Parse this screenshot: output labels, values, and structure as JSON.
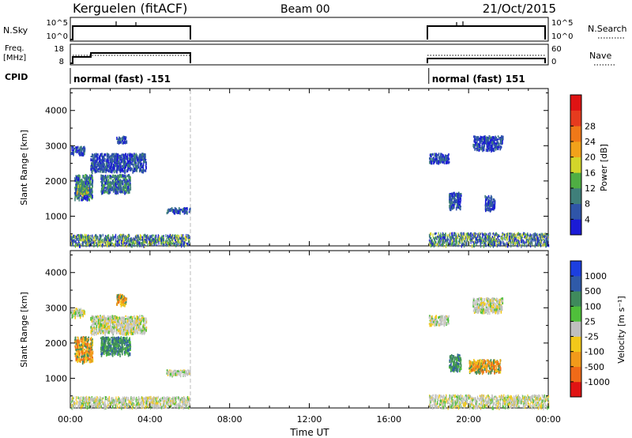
{
  "header": {
    "station": "Kerguelen (fitACF)",
    "beam": "Beam 00",
    "date": "21/Oct/2015"
  },
  "status_panels": {
    "nsky": {
      "label": "N.Sky",
      "ticks": [
        "10^5",
        "10^0"
      ]
    },
    "nsearch": {
      "label": "N.Search",
      "ticks": [
        "10^5",
        "10^0"
      ]
    },
    "freq": {
      "label_line1": "Freq.",
      "label_line2": "[MHz]",
      "ticks": [
        "18",
        "8"
      ]
    },
    "nave": {
      "label": "Nave",
      "ticks": [
        "60",
        "0"
      ]
    },
    "cpid": {
      "label": "CPID",
      "modes": [
        {
          "name": "normal (fast) -151",
          "start_hour": 0.0,
          "end_hour": 6.0
        },
        {
          "name": "normal (fast) 151",
          "start_hour": 18.0,
          "end_hour": 24.0
        }
      ]
    }
  },
  "chart_data": [
    {
      "type": "heatmap",
      "panel": "power",
      "ylabel": "Slant Range [km]",
      "xlabel": "",
      "ylim": [
        180,
        4600
      ],
      "y_ticks": [
        1000,
        2000,
        3000,
        4000
      ],
      "xlim": [
        0,
        24
      ],
      "colorbar": {
        "label": "Power [dB]",
        "ticks": [
          "4",
          "8",
          "12",
          "16",
          "20",
          "24",
          "28"
        ],
        "range": [
          0,
          30
        ],
        "colors": [
          "#1b1bd6",
          "#2f55a8",
          "#3f7f7a",
          "#4fae43",
          "#d3d62a",
          "#f2a21a",
          "#f07818",
          "#e63b1e",
          "#e01313"
        ]
      },
      "blobs": [
        {
          "t0": 0.0,
          "t1": 0.7,
          "r0": 2780,
          "r1": 3000,
          "level": "low"
        },
        {
          "t0": 0.2,
          "t1": 1.1,
          "r0": 1500,
          "r1": 2200,
          "level": "mid"
        },
        {
          "t0": 0.3,
          "t1": 0.9,
          "r0": 1650,
          "r1": 1900,
          "level": "high"
        },
        {
          "t0": 1.0,
          "t1": 3.8,
          "r0": 2300,
          "r1": 2800,
          "level": "low"
        },
        {
          "t0": 1.5,
          "t1": 3.0,
          "r0": 1700,
          "r1": 2200,
          "level": "mid"
        },
        {
          "t0": 2.3,
          "t1": 2.8,
          "r0": 3100,
          "r1": 3300,
          "level": "low"
        },
        {
          "t0": 4.8,
          "t1": 6.0,
          "r0": 1120,
          "r1": 1260,
          "level": "low"
        },
        {
          "t0": 0.0,
          "t1": 6.0,
          "r0": 200,
          "r1": 500,
          "level": "floor"
        },
        {
          "t0": 18.0,
          "t1": 19.0,
          "r0": 2550,
          "r1": 2800,
          "level": "low"
        },
        {
          "t0": 20.2,
          "t1": 21.7,
          "r0": 2900,
          "r1": 3300,
          "level": "low"
        },
        {
          "t0": 19.0,
          "t1": 19.6,
          "r0": 1250,
          "r1": 1700,
          "level": "low"
        },
        {
          "t0": 20.8,
          "t1": 21.3,
          "r0": 1200,
          "r1": 1600,
          "level": "low"
        },
        {
          "t0": 18.0,
          "t1": 24.0,
          "r0": 200,
          "r1": 550,
          "level": "floor"
        }
      ]
    },
    {
      "type": "heatmap",
      "panel": "velocity",
      "ylabel": "Slant Range [km]",
      "xlabel": "Time UT",
      "ylim": [
        180,
        4600
      ],
      "y_ticks": [
        1000,
        2000,
        3000,
        4000
      ],
      "xlim": [
        0,
        24
      ],
      "x_ticks": [
        "00:00",
        "04:00",
        "08:00",
        "12:00",
        "16:00",
        "20:00",
        "00:00"
      ],
      "colorbar": {
        "label": "Velocity [m s⁻¹]",
        "ticks": [
          "1000",
          "500",
          "100",
          "25",
          "-25",
          "-100",
          "-500",
          "-1000"
        ],
        "colors": [
          "#1c3fe0",
          "#2f5aa8",
          "#3f8a5c",
          "#4fbf3a",
          "#bfbfbf",
          "#f2c81a",
          "#f29a1a",
          "#f06a18",
          "#e01313"
        ]
      },
      "blobs": [
        {
          "t0": 0.0,
          "t1": 0.7,
          "r0": 2780,
          "r1": 3000,
          "level": "ground"
        },
        {
          "t0": 0.2,
          "t1": 1.1,
          "r0": 1500,
          "r1": 2200,
          "level": "neg"
        },
        {
          "t0": 1.0,
          "t1": 3.8,
          "r0": 2300,
          "r1": 2800,
          "level": "ground"
        },
        {
          "t0": 1.5,
          "t1": 3.0,
          "r0": 1700,
          "r1": 2200,
          "level": "pos"
        },
        {
          "t0": 2.3,
          "t1": 2.8,
          "r0": 3100,
          "r1": 3400,
          "level": "neg"
        },
        {
          "t0": 4.8,
          "t1": 6.0,
          "r0": 1120,
          "r1": 1260,
          "level": "ground"
        },
        {
          "t0": 0.0,
          "t1": 6.0,
          "r0": 200,
          "r1": 500,
          "level": "ground"
        },
        {
          "t0": 18.0,
          "t1": 19.0,
          "r0": 2550,
          "r1": 2800,
          "level": "ground"
        },
        {
          "t0": 20.2,
          "t1": 21.7,
          "r0": 2900,
          "r1": 3300,
          "level": "ground"
        },
        {
          "t0": 19.0,
          "t1": 19.6,
          "r0": 1250,
          "r1": 1700,
          "level": "pos"
        },
        {
          "t0": 20.0,
          "t1": 21.6,
          "r0": 1200,
          "r1": 1550,
          "level": "neg"
        },
        {
          "t0": 18.0,
          "t1": 24.0,
          "r0": 200,
          "r1": 550,
          "level": "ground"
        }
      ]
    }
  ]
}
